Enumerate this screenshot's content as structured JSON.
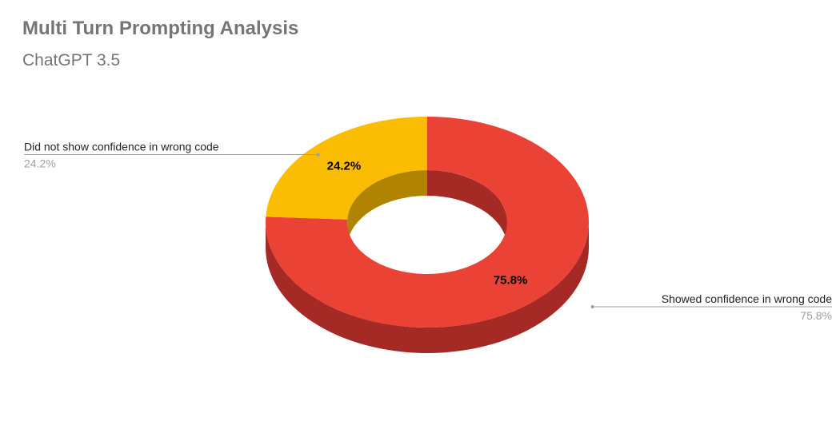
{
  "chart_data": {
    "type": "pie",
    "style": "3d-donut",
    "title": "Multi Turn Prompting Analysis",
    "subtitle": "ChatGPT 3.5",
    "slices": [
      {
        "label": "Showed confidence in wrong code",
        "value": 75.8,
        "display": "75.8%",
        "color": "#ea4335",
        "side_color": "#a52a25"
      },
      {
        "label": "Did not show confidence in wrong code",
        "value": 24.2,
        "display": "24.2%",
        "color": "#fbbc04",
        "side_color": "#b08300"
      }
    ],
    "legend": "callout-labels"
  }
}
